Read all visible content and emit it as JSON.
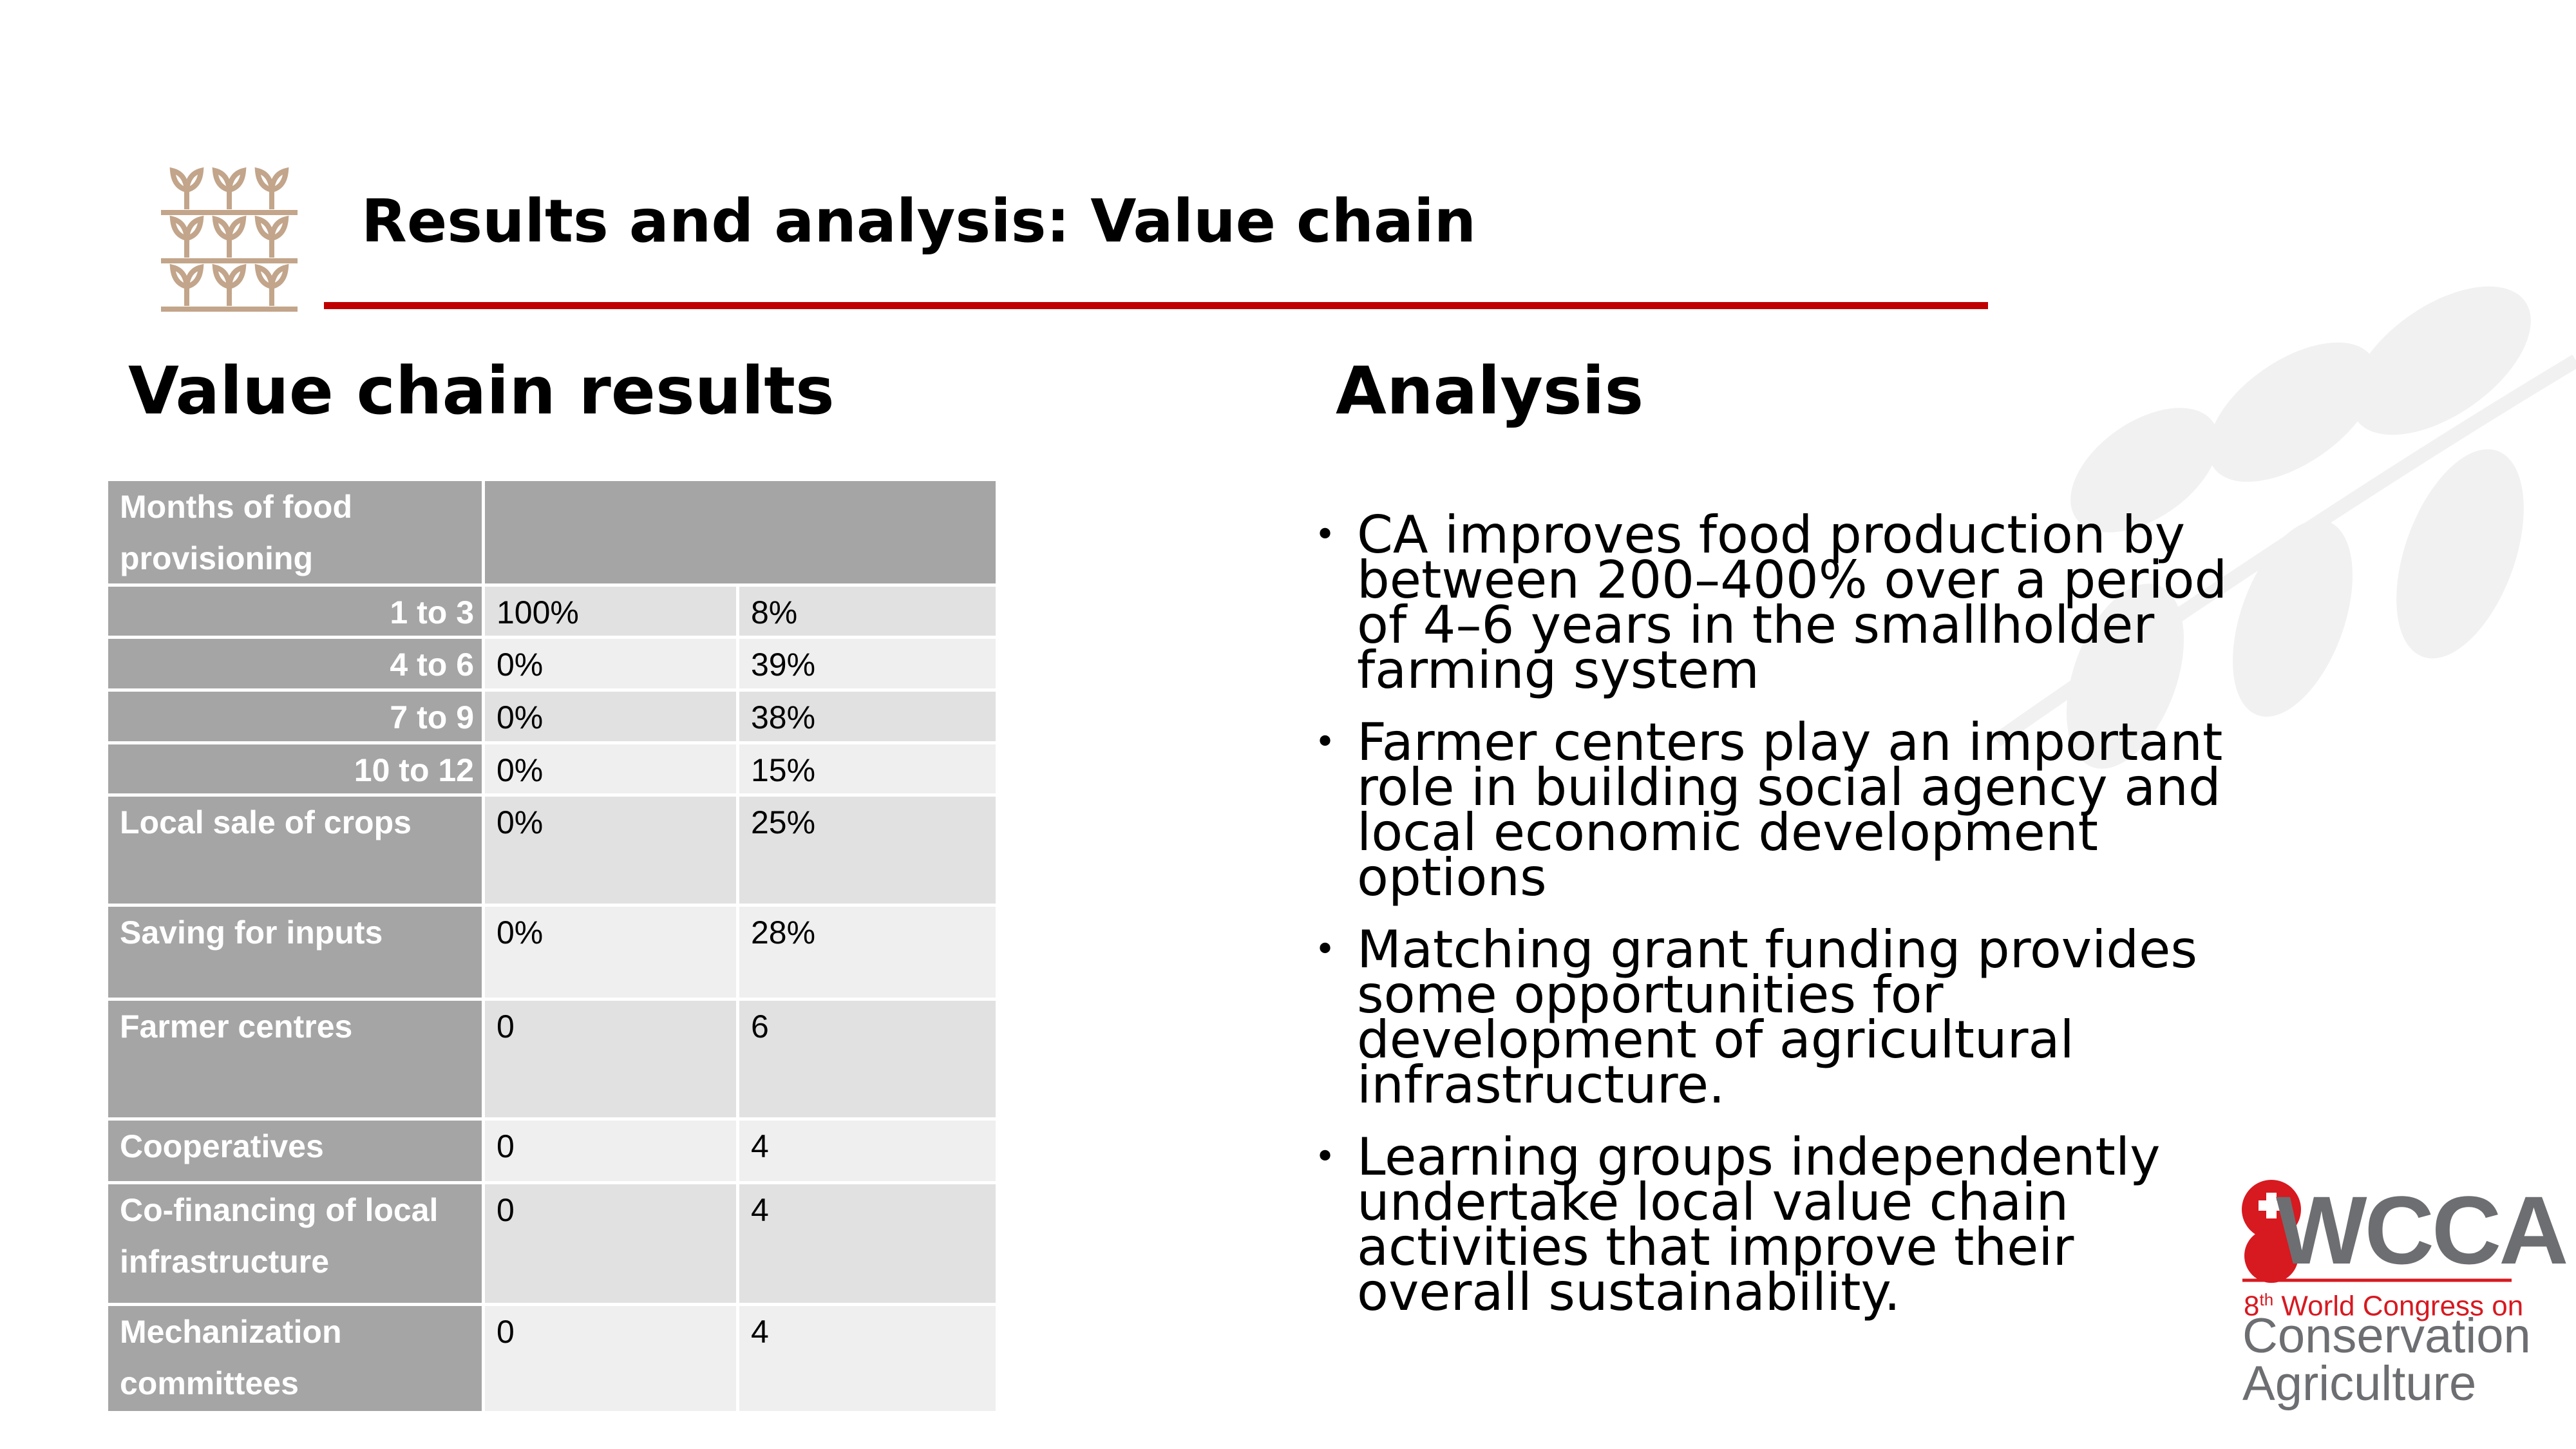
{
  "header": {
    "title": "Results and analysis: Value chain"
  },
  "left": {
    "heading": "Value chain results",
    "table": {
      "rows": [
        [
          "Months of food provisioning"
        ],
        [
          "1 to 3",
          "100%",
          "8%"
        ],
        [
          "4 to 6",
          "0%",
          "39%"
        ],
        [
          "7 to 9",
          "0%",
          "38%"
        ],
        [
          "10 to 12",
          "0%",
          "15%"
        ],
        [
          "Local sale of crops",
          "0%",
          "25%"
        ],
        [
          "Saving for inputs",
          "0%",
          "28%"
        ],
        [
          "Farmer centres",
          "0",
          "6"
        ],
        [
          "Cooperatives",
          "0",
          "4"
        ],
        [
          "Co-financing of local infrastructure",
          "0",
          "4"
        ],
        [
          "Mechanization committees",
          "0",
          "4"
        ]
      ]
    }
  },
  "right": {
    "heading": "Analysis",
    "bullets": [
      "CA improves food production by between 200–400% over a period of 4–6 years in the smallholder farming system",
      "Farmer centers play an important role in building social agency and local economic development options",
      "Matching grant funding provides some opportunities for development of agricultural infrastructure.",
      "Learning groups independently undertake local value chain activities that improve their overall sustainability."
    ]
  },
  "logo": {
    "name": "WCCA",
    "ordinal": "8",
    "ordinal_suffix": "th",
    "line1": "World Congress on",
    "line2": "Conservation",
    "line3": "Agriculture"
  }
}
